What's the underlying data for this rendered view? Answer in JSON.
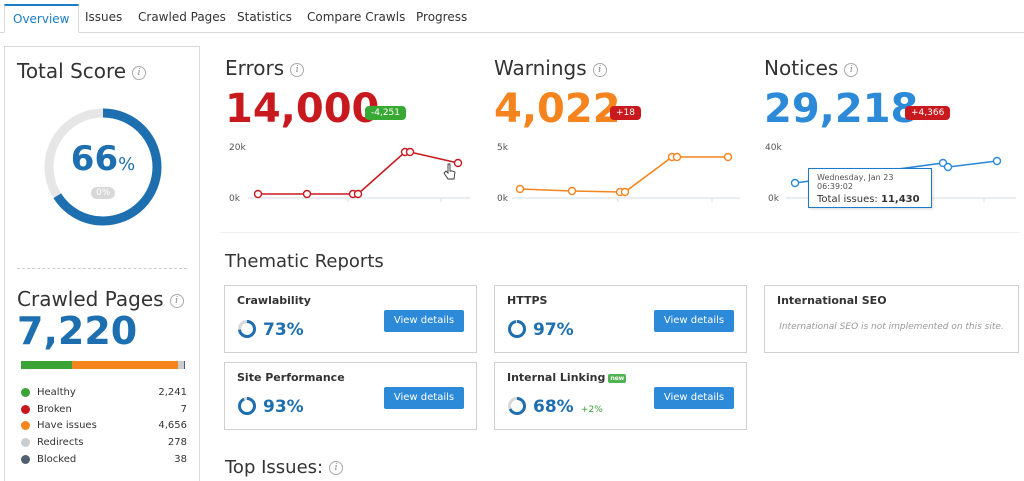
{
  "tabs": [
    {
      "label": "Overview",
      "active": true
    },
    {
      "label": "Issues"
    },
    {
      "label": "Crawled Pages"
    },
    {
      "label": "Statistics"
    },
    {
      "label": "Compare Crawls"
    },
    {
      "label": "Progress"
    }
  ],
  "total_score": {
    "title": "Total Score",
    "value": "66",
    "unit": "%",
    "fraction": 0.66,
    "change": "0%"
  },
  "crawled_pages": {
    "title": "Crawled Pages",
    "value": "7,220",
    "legend": [
      {
        "label": "Healthy",
        "value": "2,241",
        "color": "#3aa335"
      },
      {
        "label": "Broken",
        "value": "7",
        "color": "#c8191e"
      },
      {
        "label": "Have issues",
        "value": "4,656",
        "color": "#f5841f"
      },
      {
        "label": "Redirects",
        "value": "278",
        "color": "#c9cdd0"
      },
      {
        "label": "Blocked",
        "value": "38",
        "color": "#50606e"
      }
    ]
  },
  "metrics": {
    "errors": {
      "title": "Errors",
      "value": "14,000",
      "delta": "-4,251",
      "color": "#c8191e",
      "delta_color": "#39a935",
      "y_top": "20k",
      "y_bottom": "0k"
    },
    "warnings": {
      "title": "Warnings",
      "value": "4,022",
      "delta": "+18",
      "color": "#f5841f",
      "delta_color": "#c8191e",
      "y_top": "5k",
      "y_bottom": "0k"
    },
    "notices": {
      "title": "Notices",
      "value": "29,218",
      "delta": "+4,366",
      "color": "#2c8ad8",
      "delta_color": "#c8191e",
      "y_top": "40k",
      "y_bottom": "0k"
    }
  },
  "tooltip": {
    "date": "Wednesday, Jan 23 06:39:02",
    "label": "Total issues:",
    "value": "11,430"
  },
  "thematic": {
    "title": "Thematic Reports",
    "cards": [
      {
        "title": "Crawlability",
        "percent": "73%",
        "fraction": 0.73,
        "button": "View details"
      },
      {
        "title": "HTTPS",
        "percent": "97%",
        "fraction": 0.97,
        "button": "View details"
      },
      {
        "title": "International SEO",
        "note": "International SEO is not implemented on this site."
      },
      {
        "title": "Site Performance",
        "percent": "93%",
        "fraction": 0.93,
        "button": "View details"
      },
      {
        "title": "Internal Linking",
        "badge": "new",
        "percent": "68%",
        "fraction": 0.68,
        "delta": "+2%",
        "button": "View details"
      }
    ]
  },
  "top_issues": {
    "title": "Top Issues:"
  }
}
